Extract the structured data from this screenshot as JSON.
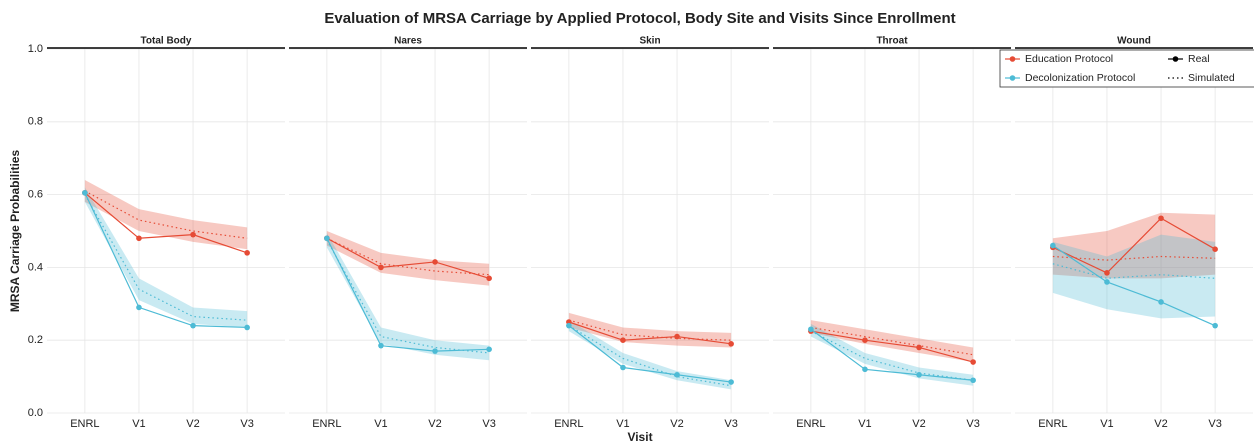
{
  "title": "Evaluation of MRSA Carriage by Applied Protocol, Body Site and Visits Since Enrollment",
  "x_label": "Visit",
  "y_label": "MRSA Carriage Probabilities",
  "ylim": [
    0,
    1
  ],
  "yticks": [
    {
      "value": 0,
      "label": "0.0"
    },
    0.2,
    0.4,
    0.6,
    0.8,
    {
      "value": 1,
      "label": "1.0"
    }
  ],
  "grid": true,
  "legend": {
    "position": "top-right",
    "protocols": [
      {
        "name": "Education Protocol",
        "color": "#e64b35"
      },
      {
        "name": "Decolonization Protocol",
        "color": "#4dbbd5"
      }
    ],
    "line_types": [
      "Real",
      "Simulated"
    ]
  },
  "chart_data": [
    {
      "type": "line",
      "title": "Total Body",
      "categories": [
        "ENRL",
        "V1",
        "V2",
        "V3"
      ],
      "series": [
        {
          "values": [
            0.605,
            0.48,
            0.49,
            0.44
          ],
          "simulated": [
            0.61,
            0.53,
            0.5,
            0.48
          ],
          "lower": [
            0.58,
            0.5,
            0.47,
            0.45
          ],
          "upper": [
            0.64,
            0.56,
            0.53,
            0.51
          ]
        },
        {
          "values": [
            0.605,
            0.29,
            0.24,
            0.235
          ],
          "simulated": [
            0.6,
            0.34,
            0.265,
            0.255
          ],
          "lower": [
            0.58,
            0.31,
            0.245,
            0.235
          ],
          "upper": [
            0.62,
            0.37,
            0.29,
            0.28
          ]
        }
      ]
    },
    {
      "type": "line",
      "title": "Nares",
      "categories": [
        "ENRL",
        "V1",
        "V2",
        "V3"
      ],
      "series": [
        {
          "values": [
            0.48,
            0.4,
            0.415,
            0.37
          ],
          "simulated": [
            0.48,
            0.41,
            0.39,
            0.38
          ],
          "lower": [
            0.46,
            0.385,
            0.365,
            0.35
          ],
          "upper": [
            0.5,
            0.44,
            0.42,
            0.41
          ]
        },
        {
          "values": [
            0.48,
            0.185,
            0.17,
            0.175
          ],
          "simulated": [
            0.475,
            0.21,
            0.18,
            0.165
          ],
          "lower": [
            0.455,
            0.19,
            0.16,
            0.145
          ],
          "upper": [
            0.495,
            0.235,
            0.2,
            0.185
          ]
        }
      ]
    },
    {
      "type": "line",
      "title": "Skin",
      "categories": [
        "ENRL",
        "V1",
        "V2",
        "V3"
      ],
      "series": [
        {
          "values": [
            0.25,
            0.2,
            0.21,
            0.19
          ],
          "simulated": [
            0.255,
            0.215,
            0.205,
            0.2
          ],
          "lower": [
            0.235,
            0.195,
            0.185,
            0.18
          ],
          "upper": [
            0.275,
            0.235,
            0.225,
            0.22
          ]
        },
        {
          "values": [
            0.24,
            0.125,
            0.105,
            0.085
          ],
          "simulated": [
            0.24,
            0.15,
            0.1,
            0.075
          ],
          "lower": [
            0.225,
            0.135,
            0.09,
            0.065
          ],
          "upper": [
            0.255,
            0.165,
            0.115,
            0.09
          ]
        }
      ]
    },
    {
      "type": "line",
      "title": "Throat",
      "categories": [
        "ENRL",
        "V1",
        "V2",
        "V3"
      ],
      "series": [
        {
          "values": [
            0.225,
            0.2,
            0.18,
            0.14
          ],
          "simulated": [
            0.235,
            0.21,
            0.185,
            0.16
          ],
          "lower": [
            0.22,
            0.19,
            0.165,
            0.14
          ],
          "upper": [
            0.255,
            0.23,
            0.205,
            0.18
          ]
        },
        {
          "values": [
            0.23,
            0.12,
            0.105,
            0.09
          ],
          "simulated": [
            0.225,
            0.15,
            0.11,
            0.09
          ],
          "lower": [
            0.21,
            0.135,
            0.095,
            0.075
          ],
          "upper": [
            0.245,
            0.165,
            0.125,
            0.105
          ]
        }
      ]
    },
    {
      "type": "line",
      "title": "Wound",
      "categories": [
        "ENRL",
        "V1",
        "V2",
        "V3"
      ],
      "series": [
        {
          "values": [
            0.455,
            0.385,
            0.535,
            0.45
          ],
          "simulated": [
            0.43,
            0.42,
            0.43,
            0.425
          ],
          "lower": [
            0.38,
            0.37,
            0.37,
            0.38
          ],
          "upper": [
            0.48,
            0.5,
            0.55,
            0.545
          ]
        },
        {
          "values": [
            0.46,
            0.36,
            0.305,
            0.24
          ],
          "simulated": [
            0.41,
            0.37,
            0.38,
            0.37
          ],
          "lower": [
            0.33,
            0.285,
            0.26,
            0.265
          ],
          "upper": [
            0.47,
            0.43,
            0.49,
            0.47
          ]
        }
      ]
    }
  ]
}
